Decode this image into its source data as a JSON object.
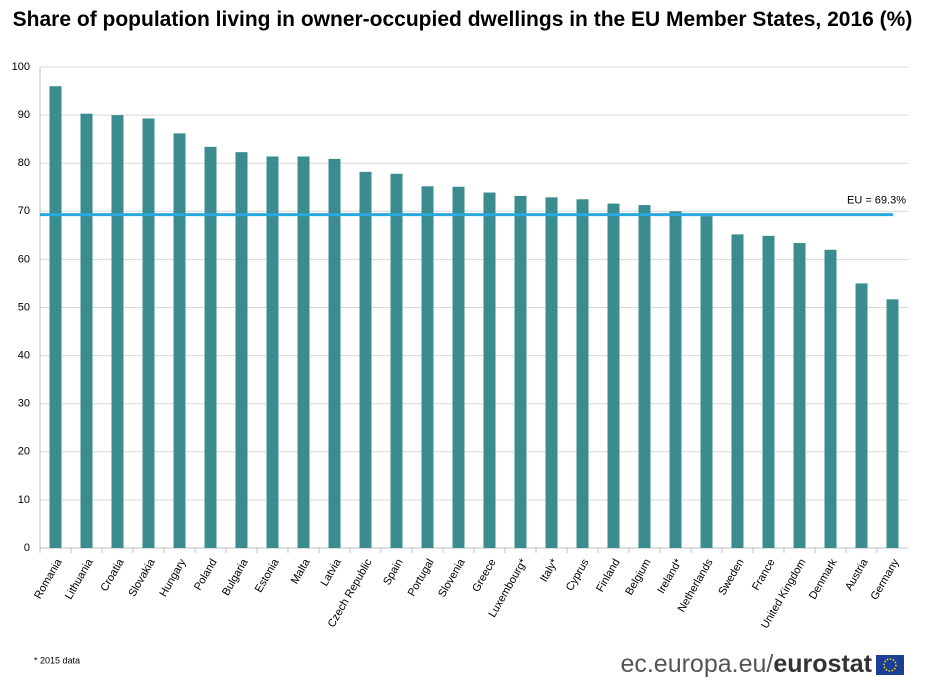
{
  "chart_data": {
    "type": "bar",
    "title": "Share of population living in owner-occupied dwellings in the EU Member States, 2016 (%)",
    "categories": [
      "Romania",
      "Lithuania",
      "Croatia",
      "Slovakia",
      "Hungary",
      "Poland",
      "Bulgaria",
      "Estonia",
      "Malta",
      "Latvia",
      "Czech Republic",
      "Spain",
      "Portugal",
      "Slovenia",
      "Greece",
      "Luxembourg*",
      "Italy*",
      "Cyprus",
      "Finland",
      "Belgium",
      "Ireland*",
      "Netherlands",
      "Sweden",
      "France",
      "United Kingdom",
      "Denmark",
      "Austria",
      "Germany"
    ],
    "values": [
      96.0,
      90.3,
      90.0,
      89.3,
      86.2,
      83.4,
      82.3,
      81.4,
      81.4,
      80.9,
      78.2,
      77.8,
      75.2,
      75.1,
      73.9,
      73.2,
      72.9,
      72.5,
      71.6,
      71.3,
      70.0,
      69.0,
      65.2,
      64.9,
      63.4,
      62.0,
      55.0,
      51.7
    ],
    "color": "#3a8c8f",
    "ylim": [
      0,
      100
    ],
    "yticks": [
      0,
      10,
      20,
      30,
      40,
      50,
      60,
      70,
      80,
      90,
      100
    ],
    "grid": true,
    "reference_line": {
      "value": 69.3,
      "label": "EU = 69.3%",
      "color": "#29a9e0"
    },
    "footnote": "* 2015 data",
    "source": {
      "domain": "ec.europa.eu/",
      "brand": "eurostat"
    }
  }
}
